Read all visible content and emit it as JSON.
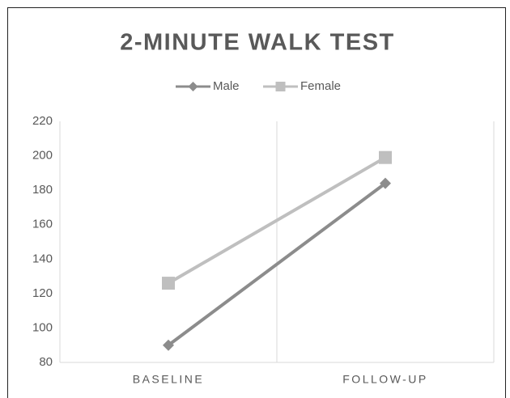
{
  "chart_data": {
    "type": "line",
    "title": "2-MINUTE  WALK TEST",
    "categories": [
      "BASELINE",
      "FOLLOW-UP"
    ],
    "series": [
      {
        "name": "Male",
        "color": "#8c8c8c",
        "marker": "diamond",
        "values": [
          90,
          184
        ]
      },
      {
        "name": "Female",
        "color": "#bfbfbf",
        "marker": "square",
        "values": [
          126,
          199
        ]
      }
    ],
    "ylim": [
      80,
      220
    ],
    "yticks": [
      80,
      100,
      120,
      140,
      160,
      180,
      200,
      220
    ],
    "grid": true,
    "legend": "top"
  }
}
